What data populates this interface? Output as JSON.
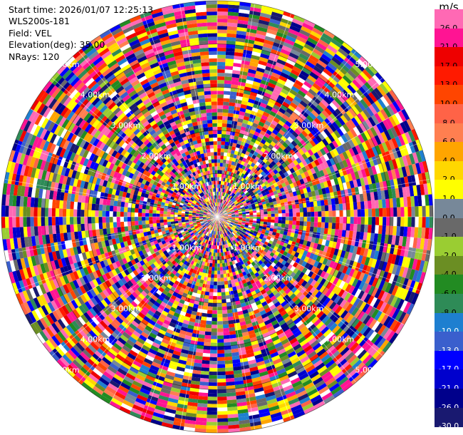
{
  "info": {
    "start_time": "Start time: 2026/01/07 12:25:13",
    "station": "WLS200s-181",
    "field": "Field: VEL",
    "elevation": "Elevation(deg): 35.00",
    "nrays": "NRays: 120"
  },
  "ppi": {
    "ring_labels": [
      "1.00km",
      "2.00km",
      "3.00km",
      "4.00km",
      "5.00km"
    ],
    "max_range_km": 5,
    "nrays": 120
  },
  "colorbar": {
    "unit": "m/s",
    "ticks": [
      "26.0",
      "21.0",
      "17.0",
      "13.0",
      "10.0",
      "8.0",
      "6.0",
      "4.0",
      "2.0",
      "1.0",
      "0.0",
      "-1.0",
      "-2.0",
      "-4.0",
      "-6.0",
      "-8.0",
      "-10.0",
      "-13.0",
      "-17.0",
      "-21.0",
      "-26.0",
      "-30.0"
    ],
    "colors": [
      "#ff69b4",
      "#ff1493",
      "#ee0000",
      "#ff1a00",
      "#ff4500",
      "#ff6347",
      "#ff7f50",
      "#ffa500",
      "#ffd700",
      "#ffff00",
      "#778899",
      "#696969",
      "#9acd32",
      "#6b8e23",
      "#228b22",
      "#2e8b57",
      "#1e7fd0",
      "#3a5fcd",
      "#0000ff",
      "#0000cd",
      "#00008b",
      "#191970"
    ]
  }
}
